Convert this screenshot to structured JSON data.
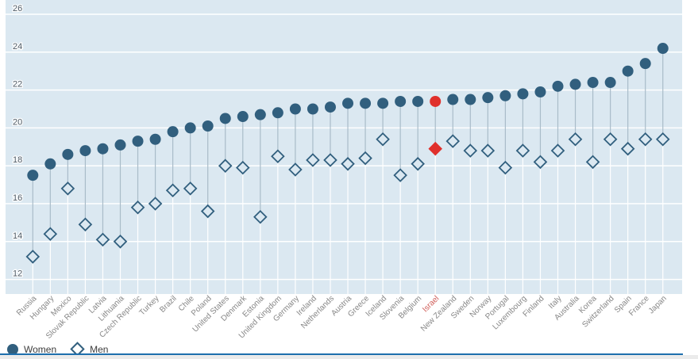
{
  "chart_data": {
    "type": "scatter",
    "subtype": "dumbbell-dot-plot",
    "title": "",
    "xlabel": "",
    "ylabel": "",
    "grid": true,
    "legend_position": "bottom-left",
    "yticks": [
      12,
      14,
      16,
      18,
      20,
      22,
      24,
      26
    ],
    "ylim": [
      11.2,
      26.8
    ],
    "highlight_category": "Israel",
    "categories": [
      "Russia",
      "Hungary",
      "Mexico",
      "Slovak Republic",
      "Latvia",
      "Lithuania",
      "Czech Republic",
      "Turkey",
      "Brazil",
      "Chile",
      "Poland",
      "United States",
      "Denmark",
      "Estonia",
      "United Kingdom",
      "Germany",
      "Ireland",
      "Netherlands",
      "Austria",
      "Greece",
      "Iceland",
      "Slovenia",
      "Belgium",
      "Israel",
      "New Zealand",
      "Sweden",
      "Norway",
      "Portugal",
      "Luxembourg",
      "Finland",
      "Italy",
      "Australia",
      "Korea",
      "Switzerland",
      "Spain",
      "France",
      "Japan"
    ],
    "series": [
      {
        "name": "Women",
        "marker": "filled-circle",
        "values": [
          17.5,
          18.1,
          18.6,
          18.8,
          18.9,
          19.1,
          19.3,
          19.4,
          19.8,
          20.0,
          20.1,
          20.5,
          20.6,
          20.7,
          20.8,
          21.0,
          21.0,
          21.1,
          21.3,
          21.3,
          21.3,
          21.4,
          21.4,
          21.4,
          21.5,
          21.5,
          21.6,
          21.7,
          21.8,
          21.9,
          22.2,
          22.3,
          22.4,
          22.4,
          23.0,
          23.4,
          24.2
        ]
      },
      {
        "name": "Men",
        "marker": "open-diamond",
        "values": [
          13.2,
          14.4,
          16.8,
          14.9,
          14.1,
          14.0,
          15.8,
          16.0,
          16.7,
          16.8,
          15.6,
          18.0,
          17.9,
          15.3,
          18.5,
          17.8,
          18.3,
          18.3,
          18.1,
          18.4,
          19.4,
          17.5,
          18.1,
          18.9,
          19.3,
          18.8,
          18.8,
          17.9,
          18.8,
          18.2,
          18.8,
          19.4,
          18.2,
          19.4,
          18.9,
          19.4,
          19.4
        ]
      }
    ]
  },
  "colors": {
    "series_blue": "#315f7e",
    "highlight_red": "#e0302c",
    "plot_background": "#dbe8f1",
    "gridline": "#ffffff",
    "stem": "#a9bcc9",
    "tick_label": "#4d5a66",
    "category_label": "#868686",
    "highlight_label": "#cf5b56",
    "footer_line": "#1e6fad",
    "footer_strip": "#ebebeb"
  }
}
